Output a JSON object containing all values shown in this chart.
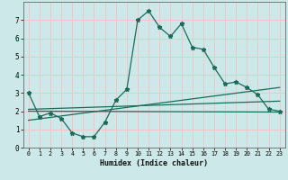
{
  "xlabel": "Humidex (Indice chaleur)",
  "background_color": "#cce8e8",
  "grid_color": "#f0c8c8",
  "line_color": "#1a6b5a",
  "xlim": [
    -0.5,
    23.5
  ],
  "ylim": [
    0,
    8
  ],
  "xticks": [
    0,
    1,
    2,
    3,
    4,
    5,
    6,
    7,
    8,
    9,
    10,
    11,
    12,
    13,
    14,
    15,
    16,
    17,
    18,
    19,
    20,
    21,
    22,
    23
  ],
  "yticks": [
    0,
    1,
    2,
    3,
    4,
    5,
    6,
    7
  ],
  "main_line_x": [
    0,
    1,
    2,
    3,
    4,
    5,
    6,
    7,
    8,
    9,
    10,
    11,
    12,
    13,
    14,
    15,
    16,
    17,
    18,
    19,
    20,
    21,
    22,
    23
  ],
  "main_line_y": [
    3.0,
    1.7,
    1.9,
    1.6,
    0.8,
    0.6,
    0.6,
    1.4,
    2.6,
    3.2,
    7.0,
    7.5,
    6.6,
    6.1,
    6.8,
    5.5,
    5.4,
    4.4,
    3.5,
    3.6,
    3.3,
    2.9,
    2.1,
    2.0
  ],
  "line2_x": [
    0,
    23
  ],
  "line2_y": [
    2.1,
    2.55
  ],
  "line3_x": [
    0,
    23
  ],
  "line3_y": [
    1.5,
    3.3
  ],
  "line4_x": [
    0,
    23
  ],
  "line4_y": [
    2.0,
    1.95
  ]
}
